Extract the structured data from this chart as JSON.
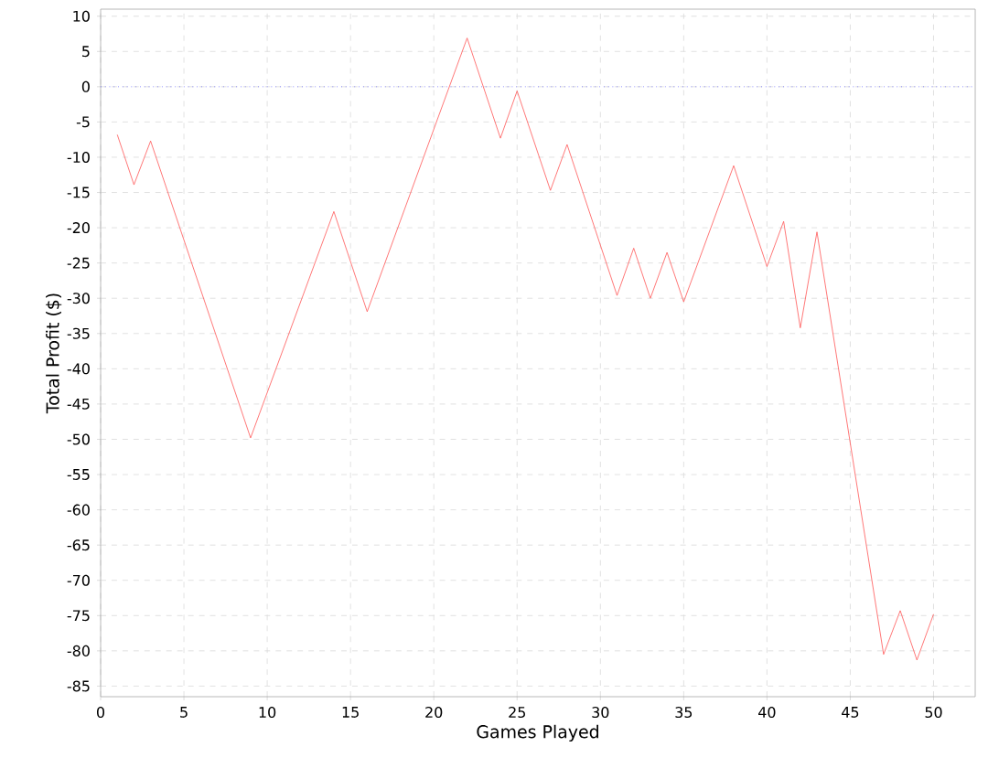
{
  "chart_data": {
    "type": "line",
    "xlabel": "Games Played",
    "ylabel": "Total Profit ($)",
    "x": [
      1,
      2,
      3,
      9,
      14,
      16,
      22,
      24,
      25,
      27,
      28,
      31,
      32,
      33,
      34,
      35,
      38,
      40,
      41,
      42,
      43,
      47,
      48,
      49,
      50
    ],
    "values": [
      -6.8,
      -13.9,
      -7.7,
      -49.8,
      -17.7,
      -31.9,
      6.9,
      -7.3,
      -0.6,
      -14.7,
      -8.2,
      -29.6,
      -22.9,
      -30.0,
      -23.5,
      -30.5,
      -11.2,
      -25.5,
      -19.1,
      -34.2,
      -20.6,
      -80.5,
      -74.3,
      -81.3,
      -74.8
    ],
    "color": "#ff5555",
    "xlim": [
      0,
      52.5
    ],
    "ylim": [
      -86.5,
      11
    ],
    "xticks": [
      0,
      5,
      10,
      15,
      20,
      25,
      30,
      35,
      40,
      45,
      50
    ],
    "yticks": [
      -85,
      -80,
      -75,
      -70,
      -65,
      -60,
      -55,
      -50,
      -45,
      -40,
      -35,
      -30,
      -25,
      -20,
      -15,
      -10,
      -5,
      0,
      5,
      10
    ],
    "grid": true,
    "marker": "none",
    "line_style": "solid",
    "ref_lines": [
      {
        "axis": "y",
        "value": 0,
        "color": "#5555ff",
        "line_style": "dotted"
      }
    ]
  }
}
